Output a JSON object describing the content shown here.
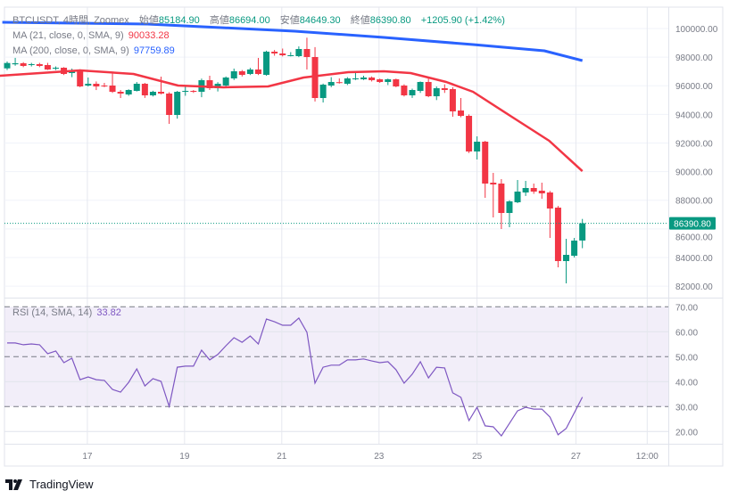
{
  "header": {
    "symbol": "BTCUSDT, 4時間, Zoomex",
    "open_label": "始値",
    "open_value": "85184.90",
    "high_label": "高値",
    "high_value": "86694.00",
    "low_label": "安値",
    "low_value": "84649.30",
    "close_label": "終値",
    "close_value": "86390.80",
    "change": "+1205.90 (+1.42%)"
  },
  "indicators": {
    "ma21": {
      "label": "MA (21, close, 0, SMA, 9)",
      "value": "90033.28",
      "color": "#f23645"
    },
    "ma200": {
      "label": "MA (200, close, 0, SMA, 9)",
      "value": "97759.89",
      "color": "#2962ff"
    },
    "rsi": {
      "label": "RSI (14, SMA, 14)",
      "value": "33.82",
      "color": "#7e57c2"
    }
  },
  "last_price_label": "86390.80",
  "footer": {
    "brand": "TradingView"
  },
  "colors": {
    "up": "#089981",
    "down": "#f23645",
    "grid": "#f0f3fa",
    "border": "#e0e3eb",
    "axis_text": "#787b86"
  },
  "chart_data": {
    "type": "candlestick",
    "title": "BTCUSDT, 4時間, Zoomex",
    "x_unit": "bar index",
    "candles_ohlc": [
      [
        97217,
        97700,
        97100,
        97590
      ],
      [
        97500,
        97950,
        97400,
        97571
      ],
      [
        97571,
        97650,
        97300,
        97385
      ],
      [
        97447,
        97600,
        97350,
        97509
      ],
      [
        97509,
        97600,
        97300,
        97385
      ],
      [
        97447,
        97600,
        97100,
        97136
      ],
      [
        97198,
        97350,
        97100,
        97260
      ],
      [
        97260,
        97300,
        96750,
        96824
      ],
      [
        96887,
        97200,
        96600,
        97073
      ],
      [
        97073,
        97150,
        95900,
        95953
      ],
      [
        96015,
        96575,
        95950,
        96139
      ],
      [
        96139,
        96300,
        95700,
        95953
      ],
      [
        96015,
        96200,
        95900,
        95953
      ],
      [
        96015,
        96949,
        95500,
        95579
      ],
      [
        95579,
        95700,
        95143,
        95454
      ],
      [
        95392,
        95750,
        95300,
        95704
      ],
      [
        95641,
        96260,
        95600,
        96139
      ],
      [
        96139,
        96200,
        95150,
        95330
      ],
      [
        95330,
        95650,
        95250,
        95579
      ],
      [
        95579,
        96637,
        95400,
        95454
      ],
      [
        95454,
        95550,
        93337,
        93960
      ],
      [
        93960,
        95641,
        93700,
        95579
      ],
      [
        95579,
        95950,
        95300,
        95641
      ],
      [
        95641,
        95700,
        95500,
        95579
      ],
      [
        95579,
        96500,
        95200,
        96388
      ],
      [
        96388,
        96700,
        95700,
        95828
      ],
      [
        95828,
        96250,
        95600,
        96139
      ],
      [
        96015,
        96650,
        95900,
        96575
      ],
      [
        96513,
        97200,
        96400,
        97011
      ],
      [
        97011,
        97100,
        96650,
        96762
      ],
      [
        96824,
        97250,
        96750,
        97136
      ],
      [
        97136,
        97945,
        96750,
        96824
      ],
      [
        96762,
        98450,
        96700,
        98381
      ],
      [
        98381,
        98500,
        98100,
        98256
      ],
      [
        98256,
        98600,
        98050,
        98132
      ],
      [
        98100,
        98350,
        98050,
        98132
      ],
      [
        98070,
        98750,
        98000,
        98568
      ],
      [
        98568,
        99360,
        97136,
        98007
      ],
      [
        98007,
        98700,
        94900,
        95143
      ],
      [
        95143,
        96150,
        94832,
        96077
      ],
      [
        96015,
        96600,
        95900,
        96264
      ],
      [
        96250,
        96513,
        96150,
        96202
      ],
      [
        96139,
        96600,
        96050,
        96513
      ],
      [
        96480,
        96887,
        96400,
        96513
      ],
      [
        96451,
        96700,
        96400,
        96575
      ],
      [
        96575,
        96650,
        96300,
        96388
      ],
      [
        96451,
        96500,
        96200,
        96264
      ],
      [
        96264,
        96500,
        96050,
        96451
      ],
      [
        96451,
        96500,
        95900,
        95953
      ],
      [
        96015,
        96100,
        95250,
        95330
      ],
      [
        95330,
        95800,
        95150,
        95704
      ],
      [
        95641,
        96300,
        95500,
        96264
      ],
      [
        96264,
        96500,
        95200,
        95267
      ],
      [
        95267,
        95950,
        95000,
        95828
      ],
      [
        95828,
        96100,
        95500,
        95704
      ],
      [
        95766,
        95900,
        93835,
        94209
      ],
      [
        94271,
        95143,
        93800,
        93898
      ],
      [
        93898,
        94000,
        91300,
        91407
      ],
      [
        91407,
        92465,
        90846,
        92092
      ],
      [
        92092,
        92150,
        88169,
        89165
      ],
      [
        89227,
        89912,
        86799,
        89103
      ],
      [
        89165,
        89476,
        85990,
        87110
      ],
      [
        87110,
        88000,
        86114,
        87920
      ],
      [
        87857,
        89414,
        87800,
        88605
      ],
      [
        88542,
        89352,
        88300,
        88854
      ],
      [
        88854,
        89165,
        88450,
        88605
      ],
      [
        88667,
        89227,
        88100,
        88480
      ],
      [
        88542,
        88650,
        85367,
        87421
      ],
      [
        87484,
        87600,
        83312,
        83748
      ],
      [
        83748,
        85304,
        82191,
        84184
      ],
      [
        84122,
        85367,
        84000,
        85180
      ],
      [
        85184.9,
        86694,
        84649.3,
        86390.8
      ]
    ],
    "ma21_points": [
      [
        -0.9,
        96700
      ],
      [
        9,
        97073
      ],
      [
        15.6,
        96824
      ],
      [
        21.1,
        96015
      ],
      [
        26.7,
        95890
      ],
      [
        32.2,
        95953
      ],
      [
        36.6,
        96575
      ],
      [
        42.1,
        96949
      ],
      [
        46.5,
        97011
      ],
      [
        49.8,
        96887
      ],
      [
        54.2,
        96264
      ],
      [
        57.5,
        95579
      ],
      [
        62.1,
        93898
      ],
      [
        66.9,
        92154
      ],
      [
        71,
        90033
      ]
    ],
    "ma200_points": [
      [
        -0.6,
        100436
      ],
      [
        17.3,
        100311
      ],
      [
        35.5,
        99813
      ],
      [
        46.5,
        99377
      ],
      [
        57.5,
        98879
      ],
      [
        66.3,
        98443
      ],
      [
        71,
        97760
      ]
    ],
    "rsi": [
      55.5,
      55.5,
      54.8,
      55.1,
      54.8,
      51.2,
      52.3,
      47.6,
      49.4,
      40.8,
      41.9,
      40.8,
      40.5,
      36.9,
      35.8,
      39.7,
      45.1,
      38.3,
      41.2,
      40.1,
      30.1,
      45.8,
      46.2,
      46.2,
      52.6,
      48.7,
      50.9,
      54.4,
      57.6,
      55.8,
      58.3,
      55.1,
      65.1,
      64.0,
      62.6,
      62.6,
      65.5,
      59.8,
      39.4,
      45.8,
      46.6,
      46.6,
      48.7,
      48.7,
      49.1,
      48.3,
      47.6,
      48.0,
      44.8,
      39.4,
      43.0,
      48.0,
      41.5,
      45.8,
      45.5,
      35.5,
      33.7,
      24.4,
      29.7,
      22.3,
      21.9,
      18.3,
      23.3,
      28.3,
      29.7,
      29.0,
      29.0,
      25.8,
      18.7,
      21.2,
      27.5,
      33.82
    ],
    "last_price": 86390.8,
    "price_ylim": [
      80700,
      101500
    ],
    "price_ticks": [
      "100000.00",
      "98000.00",
      "96000.00",
      "94000.00",
      "92000.00",
      "90000.00",
      "88000.00",
      "86000.00",
      "84000.00",
      "82000.00"
    ],
    "price_tick_values": [
      100000,
      98000,
      96000,
      94000,
      92000,
      90000,
      88000,
      86000,
      84000,
      82000
    ],
    "rsi_ylim": [
      15,
      72
    ],
    "rsi_ticks": [
      "70.00",
      "60.00",
      "50.00",
      "40.00",
      "30.00",
      "20.00"
    ],
    "rsi_tick_values": [
      70,
      60,
      50,
      40,
      30,
      20
    ],
    "rsi_band": [
      30,
      70
    ],
    "rsi_dashed_levels": [
      70,
      50,
      30
    ],
    "x_ticks": [
      {
        "label": "17",
        "index": 9.9
      },
      {
        "label": "19",
        "index": 21.9
      },
      {
        "label": "21",
        "index": 33.9
      },
      {
        "label": "23",
        "index": 45.9
      },
      {
        "label": "25",
        "index": 58
      },
      {
        "label": "27",
        "index": 70.2
      },
      {
        "label": "12:00",
        "index": 79
      }
    ],
    "grid": true
  }
}
